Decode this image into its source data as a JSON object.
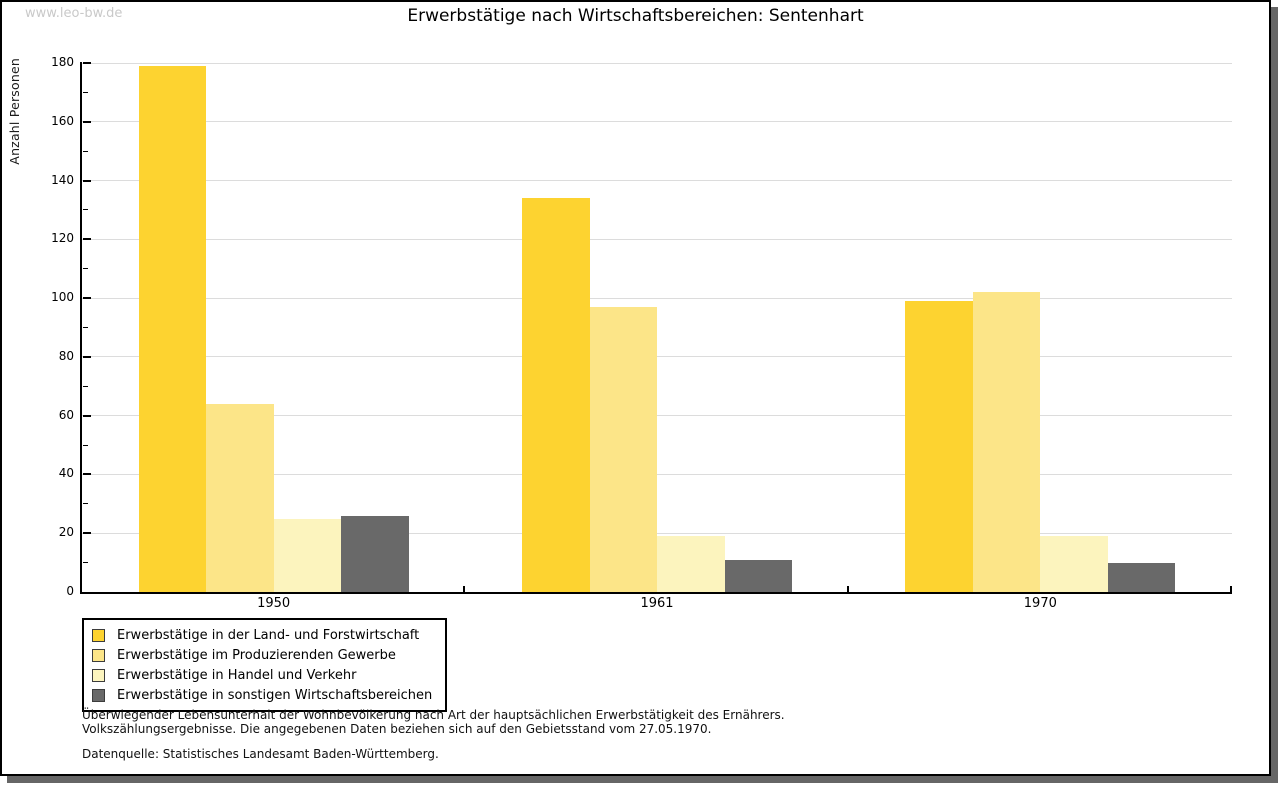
{
  "watermark": "www.leo-bw.de",
  "title": "Erwerbstätige nach Wirtschaftsbereichen: Sentenhart",
  "chart_data": {
    "type": "bar",
    "title": "Erwerbstätige nach Wirtschaftsbereichen: Sentenhart",
    "xlabel": "",
    "ylabel": "Anzahl Personen",
    "ylim": [
      0,
      180
    ],
    "ytick_step": 20,
    "ytick_minor_step": 10,
    "grid": true,
    "legend_position": "bottom-left",
    "categories": [
      "1950",
      "1961",
      "1970"
    ],
    "series": [
      {
        "name": "Erwerbstätige in der Land- und Forstwirtschaft",
        "color": "#FDD330",
        "values": [
          179,
          134,
          99
        ]
      },
      {
        "name": "Erwerbstätige im Produzierenden Gewerbe",
        "color": "#FCE588",
        "values": [
          64,
          97,
          102
        ]
      },
      {
        "name": "Erwerbstätige in Handel und Verkehr",
        "color": "#FCF4BE",
        "values": [
          25,
          19,
          19
        ]
      },
      {
        "name": "Erwerbstätige in sonstigen Wirtschaftsbereichen",
        "color": "#696969",
        "values": [
          26,
          11,
          10
        ]
      }
    ]
  },
  "footnotes": {
    "line1": "Überwiegender Lebensunterhalt der Wohnbevölkerung nach Art der hauptsächlichen Erwerbstätigkeit des Ernährers.",
    "line2": "Volkszählungsergebnisse. Die angegebenen Daten beziehen sich auf den Gebietsstand vom 27.05.1970.",
    "source": "Datenquelle: Statistisches Landesamt Baden-Württemberg."
  }
}
